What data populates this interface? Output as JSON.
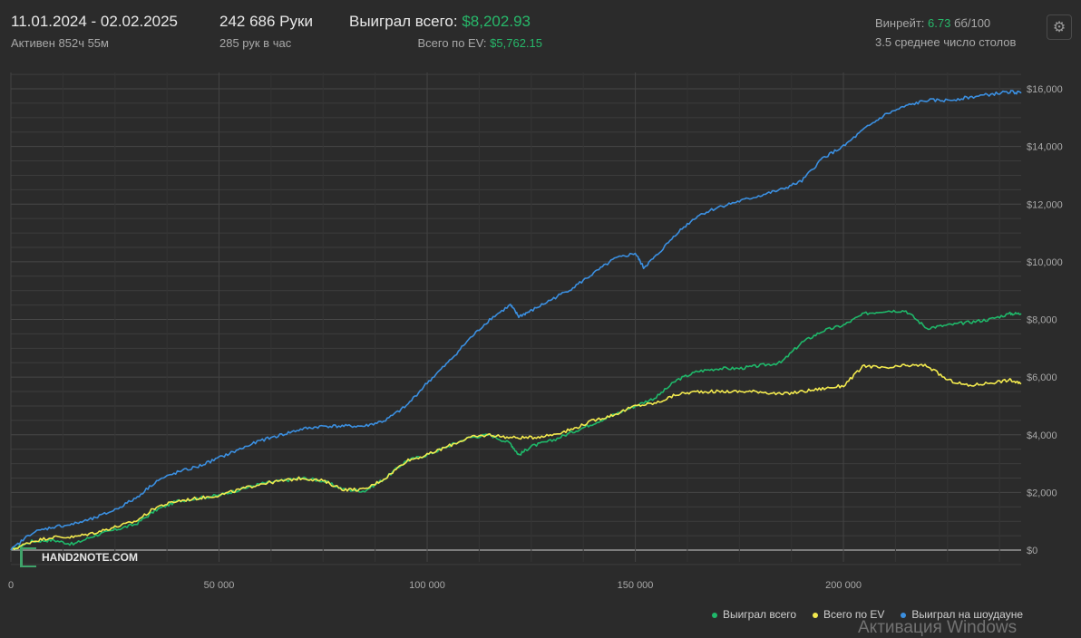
{
  "header": {
    "date_range": "11.01.2024 - 02.02.2025",
    "active": "Активен 852ч 55м",
    "hands": "242 686 Руки",
    "hands_per_hour": "285 рук в час",
    "won_total_label": "Выиграл всего:",
    "won_total_value": "$8,202.93",
    "ev_label": "Всего по EV:",
    "ev_value": "$5,762.15",
    "winrate_label": "Винрейт:",
    "winrate_value": "6.73",
    "winrate_unit": "бб/100",
    "avg_tables": "3.5 среднее число столов"
  },
  "logo_text": "HAND2NOTE.COM",
  "watermark": "Активация Windows",
  "colors": {
    "won_total": "#1fb86a",
    "ev": "#f2e94e",
    "showdown": "#3b8fe0",
    "grid": "#3c3c3c",
    "zero_line": "#cfcfcf"
  },
  "chart_data": {
    "type": "line",
    "xlim": [
      0,
      242686
    ],
    "ylim": [
      -500,
      16500
    ],
    "x_ticks": [
      0,
      50000,
      100000,
      150000,
      200000
    ],
    "x_tick_labels": [
      "0",
      "50 000",
      "100 000",
      "150 000",
      "200 000"
    ],
    "y_ticks": [
      0,
      2000,
      4000,
      6000,
      8000,
      10000,
      12000,
      14000,
      16000
    ],
    "y_tick_labels": [
      "$0",
      "$2,000",
      "$4,000",
      "$6,000",
      "$8,000",
      "$10,000",
      "$12,000",
      "$14,000",
      "$16,000"
    ],
    "grid": true,
    "legend_position": "bottom-right",
    "series": [
      {
        "name": "Выиграл всего",
        "color_key": "won_total",
        "x": [
          0,
          5000,
          10000,
          15000,
          20000,
          25000,
          30000,
          35000,
          40000,
          45000,
          50000,
          55000,
          60000,
          65000,
          70000,
          75000,
          80000,
          85000,
          90000,
          95000,
          100000,
          105000,
          110000,
          115000,
          120000,
          122000,
          125000,
          130000,
          135000,
          140000,
          145000,
          150000,
          155000,
          160000,
          165000,
          170000,
          175000,
          180000,
          185000,
          190000,
          195000,
          200000,
          205000,
          210000,
          215000,
          220000,
          225000,
          230000,
          235000,
          240000,
          242686
        ],
        "y": [
          0,
          300,
          350,
          200,
          500,
          700,
          900,
          1400,
          1700,
          1800,
          1900,
          2100,
          2300,
          2400,
          2500,
          2400,
          2100,
          2050,
          2500,
          3100,
          3300,
          3600,
          3900,
          4000,
          3700,
          3300,
          3600,
          3800,
          4100,
          4400,
          4700,
          5000,
          5300,
          5900,
          6200,
          6300,
          6300,
          6400,
          6500,
          7200,
          7600,
          7800,
          8200,
          8300,
          8300,
          7700,
          7800,
          7900,
          8000,
          8200,
          8203
        ]
      },
      {
        "name": "Всего по EV",
        "color_key": "ev",
        "x": [
          0,
          5000,
          10000,
          15000,
          20000,
          25000,
          30000,
          35000,
          40000,
          45000,
          50000,
          55000,
          60000,
          65000,
          70000,
          75000,
          80000,
          85000,
          90000,
          95000,
          100000,
          105000,
          110000,
          115000,
          120000,
          125000,
          130000,
          135000,
          140000,
          145000,
          150000,
          155000,
          160000,
          165000,
          170000,
          175000,
          180000,
          185000,
          190000,
          195000,
          200000,
          205000,
          210000,
          215000,
          220000,
          225000,
          230000,
          235000,
          240000,
          242686
        ],
        "y": [
          0,
          300,
          450,
          450,
          600,
          800,
          1000,
          1500,
          1700,
          1800,
          1900,
          2100,
          2300,
          2400,
          2500,
          2400,
          2100,
          2100,
          2500,
          3100,
          3300,
          3600,
          3900,
          4000,
          3900,
          3900,
          4000,
          4200,
          4500,
          4700,
          5000,
          5100,
          5400,
          5500,
          5500,
          5500,
          5500,
          5400,
          5500,
          5600,
          5700,
          6400,
          6300,
          6400,
          6400,
          5900,
          5700,
          5800,
          5900,
          5762
        ]
      },
      {
        "name": "Выиграл на шоудауне",
        "color_key": "showdown",
        "x": [
          0,
          5000,
          10000,
          15000,
          20000,
          25000,
          30000,
          35000,
          40000,
          45000,
          50000,
          55000,
          60000,
          65000,
          70000,
          75000,
          80000,
          85000,
          90000,
          95000,
          100000,
          105000,
          110000,
          115000,
          120000,
          122000,
          125000,
          130000,
          135000,
          140000,
          145000,
          150000,
          152000,
          155000,
          160000,
          165000,
          170000,
          175000,
          180000,
          185000,
          190000,
          195000,
          200000,
          205000,
          210000,
          215000,
          220000,
          225000,
          230000,
          235000,
          240000,
          242686
        ],
        "y": [
          0,
          600,
          800,
          900,
          1100,
          1400,
          1800,
          2400,
          2700,
          2900,
          3200,
          3500,
          3800,
          4000,
          4200,
          4300,
          4300,
          4300,
          4500,
          5000,
          5800,
          6500,
          7300,
          8000,
          8500,
          8100,
          8300,
          8700,
          9100,
          9600,
          10100,
          10300,
          9800,
          10200,
          11000,
          11600,
          11900,
          12100,
          12300,
          12500,
          12800,
          13600,
          14000,
          14600,
          15100,
          15400,
          15600,
          15600,
          15700,
          15800,
          15900,
          15850
        ]
      }
    ]
  }
}
